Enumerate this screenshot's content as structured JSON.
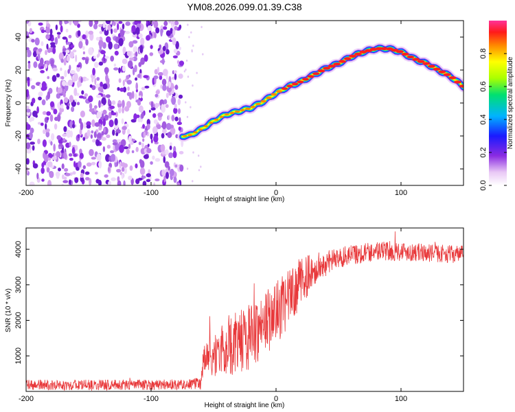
{
  "figure_title": "YM08.2026.099.01.39.C38",
  "chart_data": [
    {
      "type": "heatmap",
      "title": "YM08.2026.099.01.39.C38",
      "xlabel": "Height of straight line (km)",
      "ylabel": "Frequency (Hz)",
      "xlim": [
        -200,
        150
      ],
      "ylim": [
        -50,
        50
      ],
      "x_ticks": [
        -200,
        -100,
        0,
        100
      ],
      "y_ticks": [
        -40,
        -20,
        0,
        20,
        40
      ],
      "noise_region_x": [
        -200,
        -75
      ],
      "ridge": {
        "x": [
          -75,
          -70,
          -60,
          -50,
          -40,
          -30,
          -20,
          -10,
          0,
          10,
          20,
          30,
          40,
          50,
          60,
          70,
          80,
          90,
          100,
          110,
          120,
          130,
          140,
          150
        ],
        "freq": [
          -20,
          -20,
          -16,
          -11,
          -7,
          -5,
          -3,
          1,
          6,
          10,
          13,
          17,
          21,
          24,
          28,
          31,
          33,
          33,
          31,
          27,
          24,
          20,
          16,
          10
        ]
      },
      "colorbar": {
        "label": "Normalized spectral amplitude",
        "range": [
          0,
          1
        ],
        "ticks": [
          0.0,
          0.2,
          0.4,
          0.6,
          0.8
        ],
        "tick_labels": [
          "0.0",
          "0.2",
          "0.4",
          "0.6",
          "0.8"
        ]
      }
    },
    {
      "type": "line",
      "xlabel": "Height of straight line (km)",
      "ylabel": "SNR (10 * v/v)",
      "xlim": [
        -200,
        150
      ],
      "ylim": [
        0,
        4600
      ],
      "x_ticks": [
        -200,
        -100,
        0,
        100
      ],
      "y_ticks": [
        1000,
        2000,
        3000,
        4000
      ],
      "series": [
        {
          "name": "SNR",
          "color": "#e8383a",
          "x": [
            -200,
            -150,
            -100,
            -70,
            -60,
            -58,
            -50,
            -40,
            -30,
            -20,
            -10,
            0,
            10,
            20,
            30,
            40,
            50,
            60,
            80,
            100,
            120,
            150
          ],
          "values": [
            180,
            180,
            190,
            200,
            220,
            900,
            1000,
            1200,
            1400,
            1600,
            1900,
            2200,
            2600,
            3100,
            3400,
            3600,
            3750,
            3850,
            3950,
            3950,
            3900,
            3850
          ],
          "noise_amplitude": [
            150,
            150,
            150,
            150,
            200,
            400,
            600,
            800,
            900,
            1000,
            900,
            900,
            800,
            700,
            500,
            350,
            300,
            300,
            280,
            280,
            250,
            250
          ]
        }
      ]
    }
  ]
}
